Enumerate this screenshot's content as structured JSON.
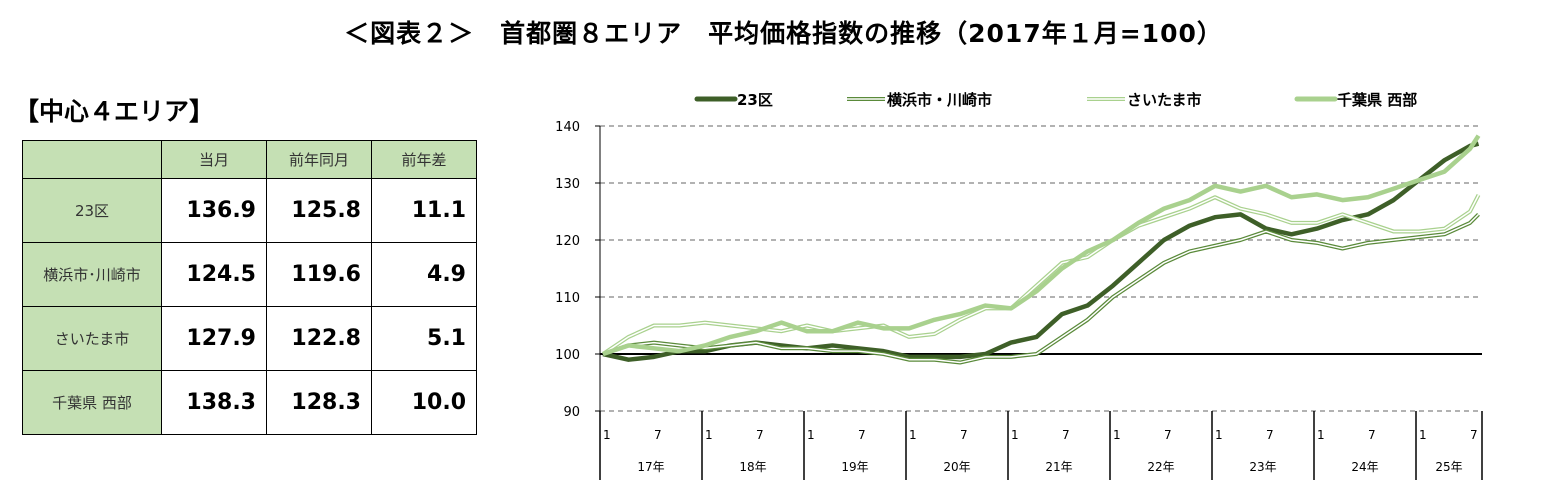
{
  "title": "＜図表２＞　首都圏８エリア　平均価格指数の推移（2017年１月=100）",
  "subtitle": "【中心４エリア】",
  "table": {
    "headers": [
      "",
      "当月",
      "前年同月",
      "前年差"
    ],
    "rows": [
      {
        "area": "23区",
        "current": "136.9",
        "prev_year": "125.8",
        "diff": "11.1"
      },
      {
        "area": "横浜市･川崎市",
        "current": "124.5",
        "prev_year": "119.6",
        "diff": "4.9"
      },
      {
        "area": "さいたま市",
        "current": "127.9",
        "prev_year": "122.8",
        "diff": "5.1"
      },
      {
        "area": "千葉県 西部",
        "current": "138.3",
        "prev_year": "128.3",
        "diff": "10.0"
      }
    ]
  },
  "chart_data": {
    "type": "line",
    "title": "",
    "xlabel": "",
    "ylabel": "",
    "ylim": [
      90,
      140
    ],
    "yticks": [
      90,
      100,
      110,
      120,
      130,
      140
    ],
    "baseline": 100,
    "grid": "dashed horizontal",
    "legend": "top",
    "month_ticks": [
      "1",
      "7"
    ],
    "years": [
      "17年",
      "18年",
      "19年",
      "20年",
      "21年",
      "22年",
      "23年",
      "24年",
      "25年"
    ],
    "x": [
      "2017-01",
      "2017-04",
      "2017-07",
      "2017-10",
      "2018-01",
      "2018-04",
      "2018-07",
      "2018-10",
      "2019-01",
      "2019-04",
      "2019-07",
      "2019-10",
      "2020-01",
      "2020-04",
      "2020-07",
      "2020-10",
      "2021-01",
      "2021-04",
      "2021-07",
      "2021-10",
      "2022-01",
      "2022-04",
      "2022-07",
      "2022-10",
      "2023-01",
      "2023-04",
      "2023-07",
      "2023-10",
      "2024-01",
      "2024-04",
      "2024-07",
      "2024-10",
      "2025-01",
      "2025-04",
      "2025-07",
      "2025-08"
    ],
    "series": [
      {
        "name": "23区",
        "color": "#3e5f28",
        "style": "thick",
        "values": [
          100,
          99,
          99.5,
          100.5,
          100.5,
          101.5,
          102,
          101.5,
          101,
          101.5,
          101,
          100.5,
          99.5,
          99.5,
          99.5,
          100,
          102,
          103,
          107,
          108.5,
          112,
          116,
          120,
          122.5,
          124,
          124.5,
          122,
          121,
          122,
          123.5,
          124.5,
          127,
          130.5,
          134,
          136.5,
          136.9
        ]
      },
      {
        "name": "横浜市・川崎市",
        "color": "#5a8a3a",
        "style": "double",
        "values": [
          100,
          101.5,
          102,
          101.5,
          101,
          101.5,
          102,
          101,
          101,
          100.5,
          100.5,
          100,
          99,
          99,
          98.5,
          99.5,
          99.5,
          100,
          103,
          106,
          110,
          113,
          116,
          118,
          119,
          120,
          121.5,
          120,
          119.5,
          118.5,
          119.5,
          120,
          120.5,
          121,
          123,
          124.5
        ]
      },
      {
        "name": "さいたま市",
        "color": "#a9d18e",
        "style": "double",
        "values": [
          100,
          103,
          105,
          105,
          105.5,
          105,
          104.5,
          104,
          105,
          104,
          104.5,
          105,
          103,
          103.5,
          106,
          108,
          108,
          112,
          116,
          117,
          120,
          122.5,
          124,
          125.5,
          127.5,
          125.5,
          124.5,
          123,
          123,
          124.5,
          123,
          121.5,
          121.5,
          122,
          125,
          127.9
        ]
      },
      {
        "name": "千葉県 西部",
        "color": "#a9d18e",
        "style": "thick",
        "values": [
          100,
          101.5,
          101,
          100.5,
          101.5,
          103,
          104,
          105.5,
          104,
          104,
          105.5,
          104.5,
          104.5,
          106,
          107,
          108.5,
          108,
          111,
          115,
          118,
          120,
          123,
          125.5,
          127,
          129.5,
          128.5,
          129.5,
          127.5,
          128,
          127,
          127.5,
          129,
          130.5,
          132,
          136,
          138.3
        ]
      }
    ]
  }
}
